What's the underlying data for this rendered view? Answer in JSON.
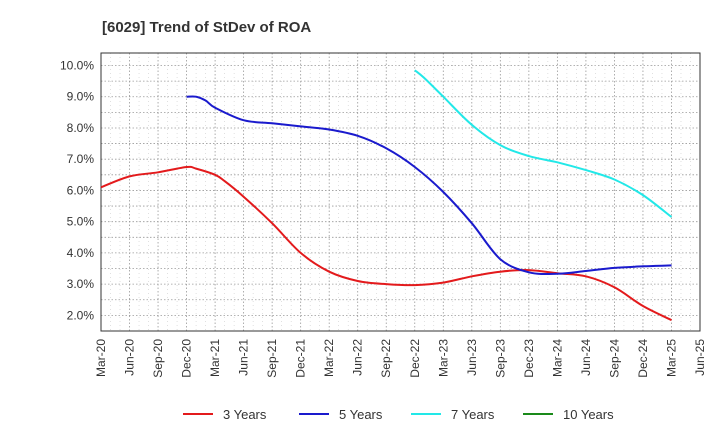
{
  "chart_data": {
    "type": "line",
    "title": "[6029]  Trend of StDev of ROA",
    "xlabel": "",
    "ylabel": "",
    "x_ticks": [
      "Mar-20",
      "Jun-20",
      "Sep-20",
      "Dec-20",
      "Mar-21",
      "Jun-21",
      "Sep-21",
      "Dec-21",
      "Mar-22",
      "Jun-22",
      "Sep-22",
      "Dec-22",
      "Mar-23",
      "Jun-23",
      "Sep-23",
      "Dec-23",
      "Mar-24",
      "Jun-24",
      "Sep-24",
      "Dec-24",
      "Mar-25",
      "Jun-25"
    ],
    "y_ticks": [
      "2.0%",
      "3.0%",
      "4.0%",
      "5.0%",
      "6.0%",
      "7.0%",
      "8.0%",
      "9.0%",
      "10.0%"
    ],
    "ylim": [
      1.5,
      10.4
    ],
    "grid": true,
    "legend_position": "bottom",
    "series": [
      {
        "name": "3 Years",
        "color": "#e31a1c",
        "points": [
          [
            "Mar-20",
            6.1
          ],
          [
            "Jun-20",
            6.45
          ],
          [
            "Sep-20",
            6.58
          ],
          [
            "Dec-20",
            6.75
          ],
          [
            "Jan-21",
            6.7
          ],
          [
            "Mar-21",
            6.5
          ],
          [
            "Apr-21",
            6.3
          ],
          [
            "Jun-21",
            5.8
          ],
          [
            "Sep-21",
            4.95
          ],
          [
            "Dec-21",
            4.0
          ],
          [
            "Mar-22",
            3.4
          ],
          [
            "Jun-22",
            3.1
          ],
          [
            "Sep-22",
            3.0
          ],
          [
            "Dec-22",
            2.97
          ],
          [
            "Mar-23",
            3.05
          ],
          [
            "Jun-23",
            3.25
          ],
          [
            "Sep-23",
            3.4
          ],
          [
            "Dec-23",
            3.45
          ],
          [
            "Mar-24",
            3.35
          ],
          [
            "Jun-24",
            3.25
          ],
          [
            "Sep-24",
            2.9
          ],
          [
            "Dec-24",
            2.3
          ],
          [
            "Mar-25",
            1.85
          ]
        ]
      },
      {
        "name": "5 Years",
        "color": "#1a1acd",
        "points": [
          [
            "Dec-20",
            9.0
          ],
          [
            "Jan-21",
            9.0
          ],
          [
            "Feb-21",
            8.88
          ],
          [
            "Mar-21",
            8.65
          ],
          [
            "Jun-21",
            8.25
          ],
          [
            "Sep-21",
            8.15
          ],
          [
            "Dec-21",
            8.05
          ],
          [
            "Mar-22",
            7.95
          ],
          [
            "Jun-22",
            7.75
          ],
          [
            "Sep-22",
            7.35
          ],
          [
            "Dec-22",
            6.75
          ],
          [
            "Mar-23",
            5.95
          ],
          [
            "Jun-23",
            4.95
          ],
          [
            "Sep-23",
            3.8
          ],
          [
            "Dec-23",
            3.38
          ],
          [
            "Mar-24",
            3.33
          ],
          [
            "Jun-24",
            3.42
          ],
          [
            "Sep-24",
            3.52
          ],
          [
            "Dec-24",
            3.57
          ],
          [
            "Mar-25",
            3.6
          ]
        ]
      },
      {
        "name": "7 Years",
        "color": "#22e8e8",
        "points": [
          [
            "Dec-22",
            9.85
          ],
          [
            "Jan-23",
            9.6
          ],
          [
            "Mar-23",
            9.0
          ],
          [
            "Jun-23",
            8.1
          ],
          [
            "Sep-23",
            7.45
          ],
          [
            "Dec-23",
            7.1
          ],
          [
            "Mar-24",
            6.9
          ],
          [
            "Jun-24",
            6.65
          ],
          [
            "Sep-24",
            6.35
          ],
          [
            "Dec-24",
            5.85
          ],
          [
            "Mar-25",
            5.15
          ]
        ]
      },
      {
        "name": "10 Years",
        "color": "#1a8a1a",
        "points": []
      }
    ]
  }
}
